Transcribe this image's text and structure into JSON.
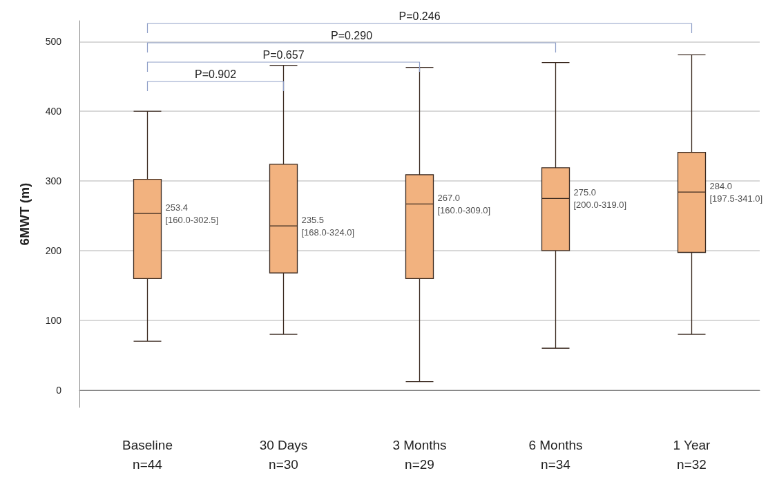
{
  "chart_data": {
    "type": "box",
    "ylabel": "6MWT (m)",
    "categories": [
      "Baseline\nn=44",
      "30 Days\nn=30",
      "3 Months\nn=29",
      "6 Months\nn=34",
      "1 Year\nn=32"
    ],
    "boxes": [
      {
        "low": 70,
        "q1": 160,
        "median": 253.4,
        "q3": 302.5,
        "high": 400
      },
      {
        "low": 80,
        "q1": 168,
        "median": 235.5,
        "q3": 324,
        "high": 466
      },
      {
        "low": 12,
        "q1": 160,
        "median": 267,
        "q3": 309,
        "high": 463
      },
      {
        "low": 60,
        "q1": 200,
        "median": 275,
        "q3": 319,
        "high": 470
      },
      {
        "low": 80,
        "q1": 197.5,
        "median": 284,
        "q3": 341,
        "high": 481
      }
    ],
    "color": "#f2b27f",
    "ylim": [
      -25,
      530
    ],
    "yticks": [
      0,
      100,
      200,
      300,
      400,
      500
    ],
    "grid": "y",
    "annotations": [
      "P=0.902",
      "P=0.657",
      "P=0.290",
      "P=0.246",
      "253.4\n[160.0-302.5]",
      "235.5\n[168.0-324.0]",
      "267.0\n[160.0-309.0]",
      "275.0\n[200.0-319.0]",
      "284.0\n[197.5-341.0]"
    ]
  }
}
